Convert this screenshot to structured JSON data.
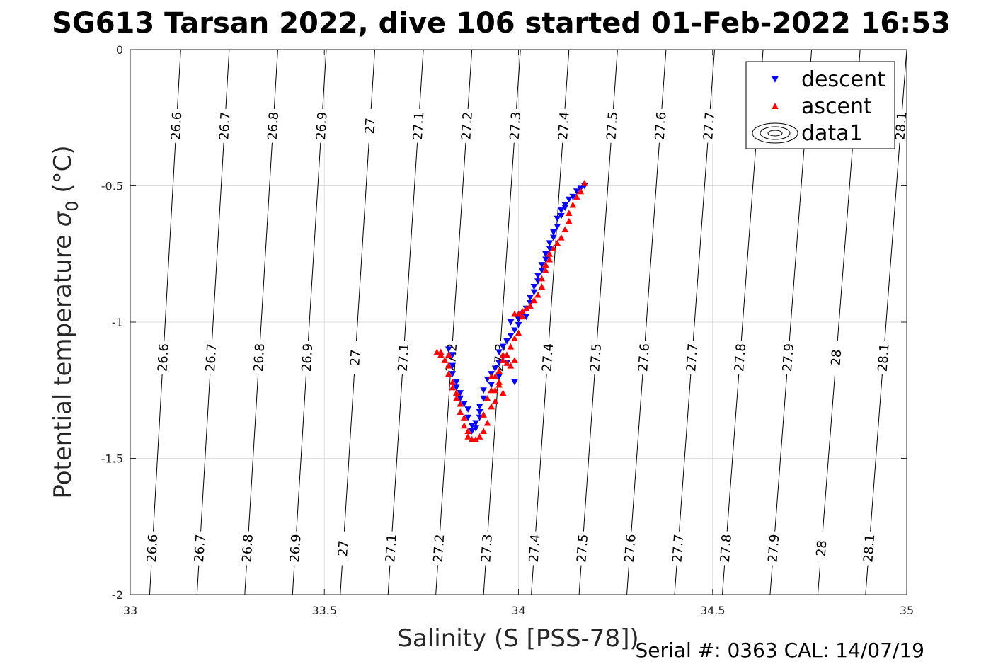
{
  "chart_data": {
    "type": "scatter",
    "title": "SG613 Tarsan 2022, dive 106 started 01-Feb-2022 16:53",
    "xlabel": "Salinity (S [PSS-78])",
    "ylabel": "Potential temperature σ₀ (°C)",
    "ylabel_main": "Potential temperature ",
    "ylabel_sigma": "σ",
    "ylabel_sub": "0",
    "ylabel_unit": " (°C)",
    "xlim": [
      33,
      35
    ],
    "ylim": [
      -2,
      0
    ],
    "xticks": [
      "33",
      "33.5",
      "34",
      "34.5",
      "35"
    ],
    "xtick_values": [
      33,
      33.5,
      34,
      34.5,
      35
    ],
    "yticks": [
      "0",
      "-0.5",
      "-1",
      "-1.5",
      "-2"
    ],
    "ytick_values": [
      0,
      -0.5,
      -1,
      -1.5,
      -2
    ],
    "grid": true,
    "legend": {
      "position": "top-right",
      "entries": [
        {
          "label": "descent",
          "color": "#0000ff",
          "marker": "triangle-down"
        },
        {
          "label": "ascent",
          "color": "#ff0000",
          "marker": "triangle-up"
        },
        {
          "label": "data1",
          "marker": "contour"
        }
      ]
    },
    "isopycnals": {
      "levels": [
        26.6,
        26.7,
        26.8,
        26.9,
        27.0,
        27.1,
        27.2,
        27.3,
        27.4,
        27.5,
        27.6,
        27.7,
        27.8,
        27.9,
        28.0,
        28.1
      ],
      "labels": [
        "26.6",
        "26.7",
        "26.8",
        "26.9",
        "27",
        "27.1",
        "27.2",
        "27.3",
        "27.4",
        "27.5",
        "27.6",
        "27.7",
        "27.8",
        "27.9",
        "28",
        "28.1"
      ],
      "salinity_at_0C": [
        33.13,
        33.255,
        33.38,
        33.505,
        33.63,
        33.755,
        33.88,
        34.005,
        34.13,
        34.255,
        34.38,
        34.505,
        34.63,
        34.755,
        34.88,
        35.0
      ],
      "salinity_at_minus2C": [
        33.05,
        33.172,
        33.295,
        33.418,
        33.541,
        33.664,
        33.787,
        33.91,
        34.033,
        34.156,
        34.279,
        34.402,
        34.525,
        34.648,
        34.771,
        34.894
      ]
    },
    "series": [
      {
        "name": "descent",
        "color": "#0000ff",
        "marker": "triangle-down",
        "points": [
          [
            34.17,
            -0.5
          ],
          [
            34.16,
            -0.51
          ],
          [
            34.15,
            -0.52
          ],
          [
            34.14,
            -0.54
          ],
          [
            34.13,
            -0.55
          ],
          [
            34.12,
            -0.57
          ],
          [
            34.12,
            -0.58
          ],
          [
            34.11,
            -0.59
          ],
          [
            34.11,
            -0.61
          ],
          [
            34.1,
            -0.62
          ],
          [
            34.1,
            -0.65
          ],
          [
            34.09,
            -0.67
          ],
          [
            34.09,
            -0.69
          ],
          [
            34.08,
            -0.71
          ],
          [
            34.08,
            -0.73
          ],
          [
            34.07,
            -0.75
          ],
          [
            34.07,
            -0.77
          ],
          [
            34.06,
            -0.79
          ],
          [
            34.06,
            -0.81
          ],
          [
            34.05,
            -0.83
          ],
          [
            34.05,
            -0.85
          ],
          [
            34.04,
            -0.87
          ],
          [
            34.04,
            -0.89
          ],
          [
            34.03,
            -0.91
          ],
          [
            34.03,
            -0.93
          ],
          [
            34.02,
            -0.95
          ],
          [
            34.01,
            -0.97
          ],
          [
            34.0,
            -0.99
          ],
          [
            34.0,
            -1.01
          ],
          [
            33.99,
            -1.03
          ],
          [
            33.98,
            -1.05
          ],
          [
            33.97,
            -1.07
          ],
          [
            33.96,
            -1.09
          ],
          [
            33.95,
            -1.11
          ],
          [
            33.96,
            -1.13
          ],
          [
            33.95,
            -1.15
          ],
          [
            33.94,
            -1.17
          ],
          [
            33.93,
            -1.19
          ],
          [
            33.92,
            -1.21
          ],
          [
            33.93,
            -1.23
          ],
          [
            33.91,
            -1.25
          ],
          [
            33.91,
            -1.28
          ],
          [
            33.9,
            -1.31
          ],
          [
            33.9,
            -1.33
          ],
          [
            33.9,
            -1.35
          ],
          [
            33.89,
            -1.37
          ],
          [
            33.89,
            -1.39
          ],
          [
            33.88,
            -1.4
          ],
          [
            33.88,
            -1.38
          ],
          [
            33.87,
            -1.35
          ],
          [
            33.87,
            -1.32
          ],
          [
            33.86,
            -1.3
          ],
          [
            33.85,
            -1.28
          ],
          [
            33.85,
            -1.26
          ],
          [
            33.84,
            -1.24
          ],
          [
            33.84,
            -1.22
          ],
          [
            33.83,
            -1.19
          ],
          [
            33.83,
            -1.16
          ],
          [
            33.83,
            -1.12
          ],
          [
            33.82,
            -1.1
          ],
          [
            34.02,
            -0.98
          ],
          [
            33.98,
            -1.0
          ],
          [
            33.97,
            -1.15
          ],
          [
            33.95,
            -1.2
          ],
          [
            33.99,
            -1.22
          ]
        ]
      },
      {
        "name": "ascent",
        "color": "#ff0000",
        "marker": "triangle-up",
        "points": [
          [
            34.17,
            -0.49
          ],
          [
            34.16,
            -0.52
          ],
          [
            34.15,
            -0.54
          ],
          [
            34.14,
            -0.57
          ],
          [
            34.13,
            -0.6
          ],
          [
            34.13,
            -0.63
          ],
          [
            34.12,
            -0.66
          ],
          [
            34.11,
            -0.69
          ],
          [
            34.1,
            -0.71
          ],
          [
            34.09,
            -0.73
          ],
          [
            34.08,
            -0.75
          ],
          [
            34.08,
            -0.77
          ],
          [
            34.07,
            -0.79
          ],
          [
            34.07,
            -0.81
          ],
          [
            34.06,
            -0.84
          ],
          [
            34.06,
            -0.87
          ],
          [
            34.05,
            -0.9
          ],
          [
            34.04,
            -0.92
          ],
          [
            34.03,
            -0.94
          ],
          [
            34.02,
            -0.95
          ],
          [
            34.01,
            -0.96
          ],
          [
            34.0,
            -0.97
          ],
          [
            33.99,
            -0.97
          ],
          [
            34.01,
            -0.98
          ],
          [
            34.0,
            -1.04
          ],
          [
            33.99,
            -1.06
          ],
          [
            33.98,
            -1.09
          ],
          [
            33.97,
            -1.12
          ],
          [
            33.96,
            -1.14
          ],
          [
            33.95,
            -1.18
          ],
          [
            33.94,
            -1.2
          ],
          [
            33.95,
            -1.22
          ],
          [
            33.93,
            -1.25
          ],
          [
            33.92,
            -1.28
          ],
          [
            33.93,
            -1.31
          ],
          [
            33.91,
            -1.34
          ],
          [
            33.92,
            -1.37
          ],
          [
            33.91,
            -1.4
          ],
          [
            33.9,
            -1.42
          ],
          [
            33.89,
            -1.43
          ],
          [
            33.88,
            -1.43
          ],
          [
            33.87,
            -1.42
          ],
          [
            33.87,
            -1.4
          ],
          [
            33.86,
            -1.38
          ],
          [
            33.86,
            -1.35
          ],
          [
            33.85,
            -1.33
          ],
          [
            33.85,
            -1.3
          ],
          [
            33.84,
            -1.28
          ],
          [
            33.84,
            -1.26
          ],
          [
            33.83,
            -1.24
          ],
          [
            33.83,
            -1.22
          ],
          [
            33.82,
            -1.19
          ],
          [
            33.82,
            -1.16
          ],
          [
            33.81,
            -1.14
          ],
          [
            33.8,
            -1.12
          ],
          [
            33.8,
            -1.11
          ],
          [
            33.79,
            -1.11
          ],
          [
            33.82,
            -1.12
          ],
          [
            33.96,
            -1.12
          ],
          [
            33.97,
            -1.15
          ],
          [
            33.98,
            -1.16
          ],
          [
            33.99,
            -1.14
          ],
          [
            33.93,
            -1.2
          ],
          [
            33.94,
            -1.25
          ],
          [
            33.94,
            -1.29
          ],
          [
            33.95,
            -1.23
          ],
          [
            33.96,
            -1.26
          ]
        ]
      }
    ]
  },
  "footer": {
    "serial": "Serial #: 0363  CAL: 14/07/19"
  }
}
